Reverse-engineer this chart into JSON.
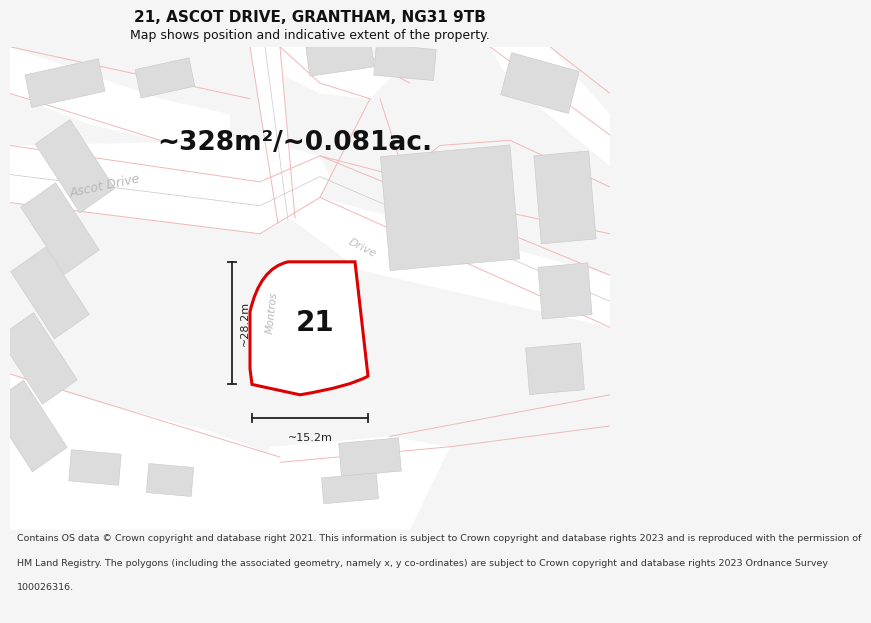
{
  "title": "21, ASCOT DRIVE, GRANTHAM, NG31 9TB",
  "subtitle": "Map shows position and indicative extent of the property.",
  "area_text": "~328m²/~0.081ac.",
  "label_21": "21",
  "dim_width": "~15.2m",
  "dim_height": "~28.2m",
  "street_ascot": "Ascot Drive",
  "street_montrose": "Montros",
  "street_drive2": "Drive",
  "footer_lines": [
    "Contains OS data © Crown copyright and database right 2021. This information is subject to Crown copyright and database rights 2023 and is reproduced with the permission of",
    "HM Land Registry. The polygons (including the associated geometry, namely x, y co-ordinates) are subject to Crown copyright and database rights 2023 Ordnance Survey",
    "100026316."
  ],
  "bg_color": "#f5f5f5",
  "map_bg": "#f8f8f8",
  "road_color": "#ffffff",
  "building_color": "#dcdcdc",
  "building_edge": "#c8c8c8",
  "plot_fill": "#ffffff",
  "plot_edge": "#dd0000",
  "road_pink": "#f0b8b8",
  "road_grey": "#c8c8c8",
  "label_color": "#cccccc",
  "dim_color": "#222222",
  "title_fontsize": 11,
  "subtitle_fontsize": 9,
  "area_fontsize": 19,
  "label_fontsize": 20,
  "footer_fontsize": 6.8,
  "street_fontsize": 9
}
